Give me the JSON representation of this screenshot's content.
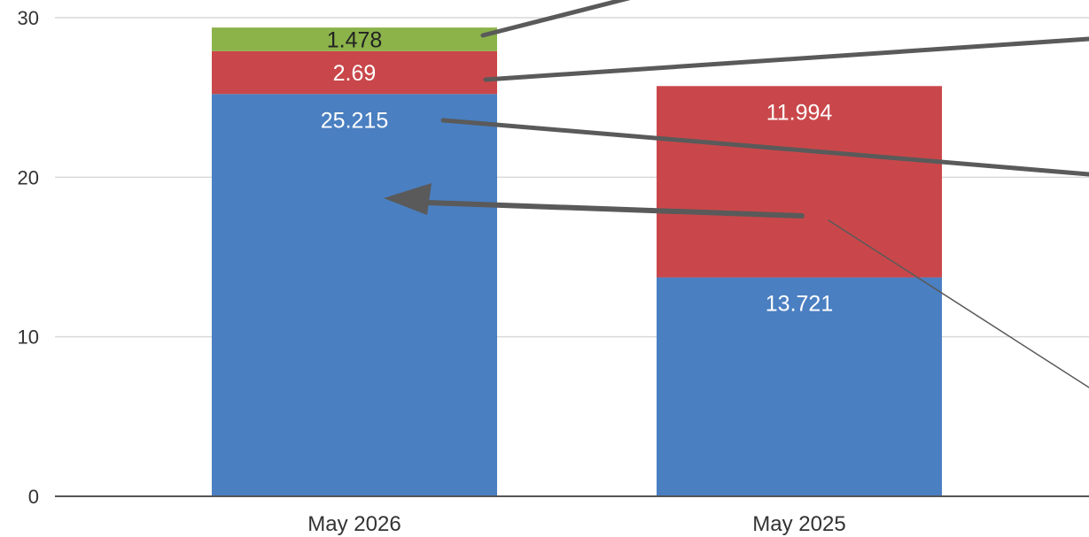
{
  "chart_data": {
    "type": "bar",
    "stacked": true,
    "title": "",
    "xlabel": "",
    "ylabel": "",
    "ylim": [
      0,
      30
    ],
    "yticks": [
      0,
      10,
      20,
      30
    ],
    "grid": true,
    "categories": [
      "May 2026",
      "May 2025"
    ],
    "series": [
      {
        "values": [
          25.215,
          13.721
        ],
        "labels": [
          "25.215",
          "13.721"
        ],
        "color": "#4a7fc1",
        "label_color": "#ffffff"
      },
      {
        "values": [
          2.69,
          11.994
        ],
        "labels": [
          "2.69",
          "11.994"
        ],
        "color": "#c9474a",
        "label_color": "#ffffff"
      },
      {
        "values": [
          1.478,
          0
        ],
        "labels": [
          "1.478",
          ""
        ],
        "color": "#8bb34a",
        "label_color": "#222222"
      }
    ]
  }
}
